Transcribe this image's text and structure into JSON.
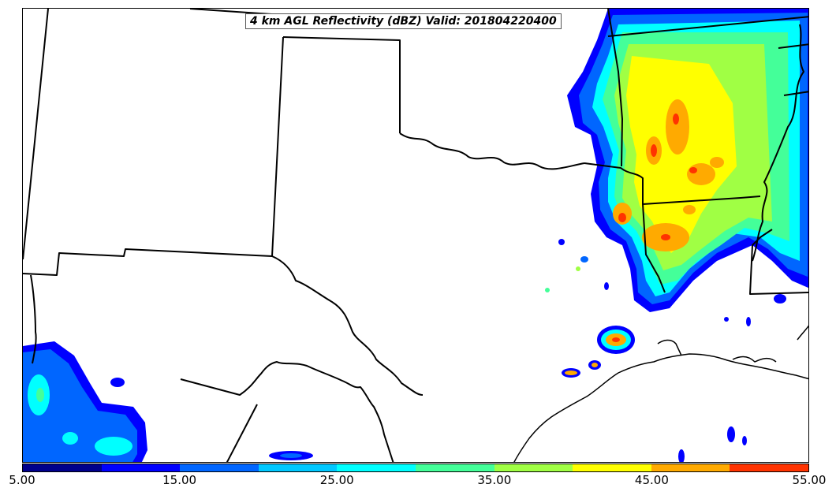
{
  "map": {
    "title": "4 km AGL Reflectivity (dBZ) Valid: 201804220400",
    "variable": "Reflectivity",
    "level": "4 km AGL",
    "units": "dBZ",
    "valid_time": "201804220400"
  },
  "colorbar": {
    "min": 5.0,
    "max": 55.0,
    "interval": 5.0,
    "colors": [
      "#00008c",
      "#0000ff",
      "#0066ff",
      "#00c8ff",
      "#00ffff",
      "#44ff99",
      "#a0ff44",
      "#ffff00",
      "#ffaa00",
      "#ff3300",
      "#cc0000"
    ],
    "tick_labels": [
      "5.00",
      "15.00",
      "25.00",
      "35.00",
      "45.00",
      "55.00"
    ]
  },
  "layers": {
    "state_borders": "black",
    "coastline": "black"
  }
}
